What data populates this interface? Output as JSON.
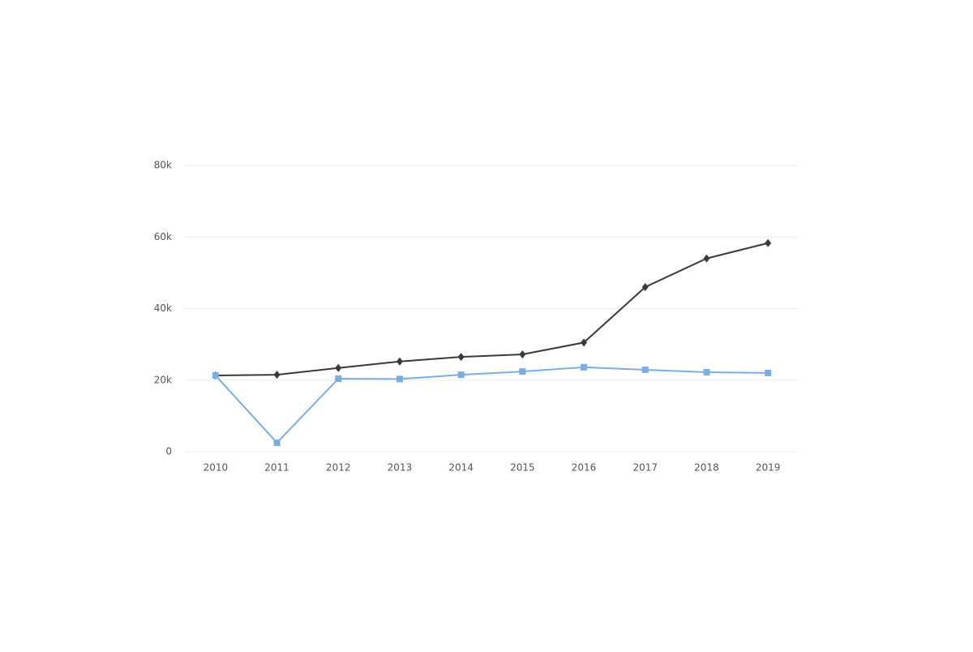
{
  "chart_data": {
    "type": "line",
    "categories": [
      "2010",
      "2011",
      "2012",
      "2013",
      "2014",
      "2015",
      "2016",
      "2017",
      "2018",
      "2019"
    ],
    "series": [
      {
        "color": "#3a3a3a",
        "marker": "diamond",
        "values": [
          21300,
          21500,
          23400,
          25200,
          26500,
          27200,
          30500,
          46000,
          54000,
          58300
        ]
      },
      {
        "color": "#7aaee0",
        "marker": "square",
        "values": [
          21300,
          2500,
          20400,
          20300,
          21500,
          22400,
          23600,
          22900,
          22200,
          22000
        ]
      }
    ],
    "ylim": [
      0,
      80000
    ],
    "yticks": [
      0,
      {
        "value": 20000,
        "label": "20k"
      },
      {
        "value": 40000,
        "label": "40k"
      },
      {
        "value": 60000,
        "label": "60k"
      },
      {
        "value": 80000,
        "label": "80k"
      }
    ],
    "grid": true
  }
}
